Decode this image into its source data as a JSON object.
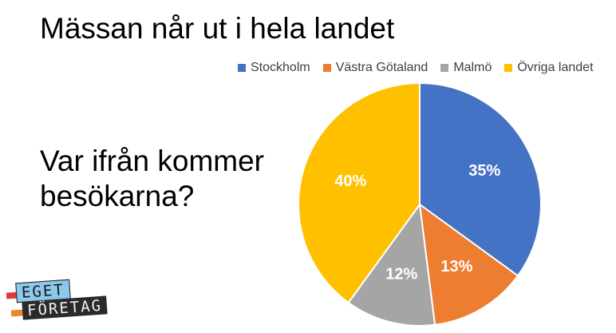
{
  "slide": {
    "title": "Mässan når ut i hela landet",
    "question": "Var ifrån kommer besökarna?"
  },
  "logo": {
    "line1": "EGET",
    "line2": "FÖRETAG"
  },
  "chart_data": {
    "type": "pie",
    "title": "",
    "legend_position": "top",
    "start_angle_deg": 0,
    "direction": "clockwise",
    "slices": [
      {
        "name": "Stockholm",
        "value": 35,
        "label": "35%",
        "color": "#4472C4"
      },
      {
        "name": "Västra Götaland",
        "value": 13,
        "label": "13%",
        "color": "#ED7D31"
      },
      {
        "name": "Malmö",
        "value": 12,
        "label": "12%",
        "color": "#A5A5A5"
      },
      {
        "name": "Övriga landet",
        "value": 40,
        "label": "40%",
        "color": "#FFC000"
      }
    ]
  }
}
